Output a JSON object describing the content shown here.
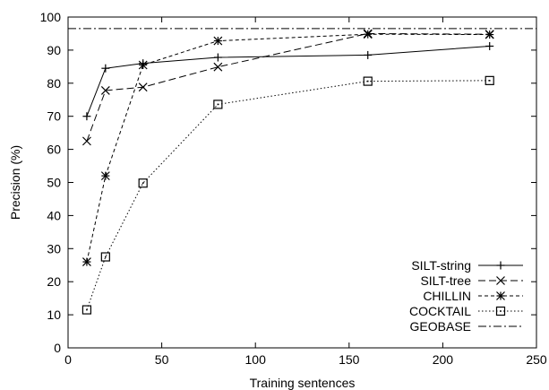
{
  "chart_data": {
    "type": "line",
    "xlabel": "Training sentences",
    "ylabel": "Precision (%)",
    "xlim": [
      0,
      250
    ],
    "ylim": [
      0,
      100
    ],
    "x_ticks": [
      0,
      50,
      100,
      150,
      200,
      250
    ],
    "y_ticks": [
      0,
      10,
      20,
      30,
      40,
      50,
      60,
      70,
      80,
      90,
      100
    ],
    "grid": false,
    "legend_position": "bottom-right",
    "series": [
      {
        "name": "SILT-string",
        "marker": "plus",
        "dash": "solid",
        "x": [
          10,
          20,
          40,
          80,
          160,
          225
        ],
        "y": [
          70.0,
          84.5,
          86.0,
          87.8,
          88.5,
          91.2
        ]
      },
      {
        "name": "SILT-tree",
        "marker": "x",
        "dash": "dashed",
        "x": [
          10,
          20,
          40,
          80,
          160,
          225
        ],
        "y": [
          62.5,
          77.8,
          78.8,
          84.9,
          95.0,
          94.8
        ]
      },
      {
        "name": "CHILLIN",
        "marker": "asterisk",
        "dash": "short-dashed",
        "x": [
          10,
          20,
          40,
          80,
          160,
          225
        ],
        "y": [
          26.0,
          52.0,
          85.5,
          92.8,
          94.8,
          94.7
        ]
      },
      {
        "name": "COCKTAIL",
        "marker": "square",
        "dash": "dotted",
        "x": [
          10,
          20,
          40,
          80,
          160,
          225
        ],
        "y": [
          11.5,
          27.5,
          49.8,
          73.6,
          80.6,
          80.8
        ]
      },
      {
        "name": "GEOBASE",
        "marker": "none",
        "dash": "dash-dot",
        "x": [
          0,
          250
        ],
        "y": [
          96.5,
          96.5
        ]
      }
    ]
  }
}
